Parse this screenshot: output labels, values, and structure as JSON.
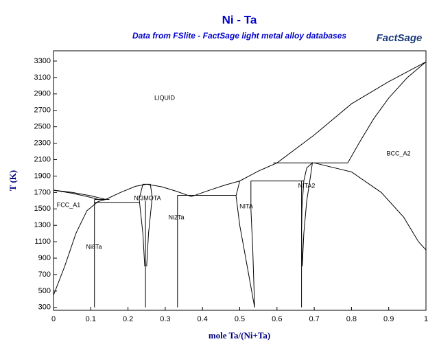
{
  "chart_data": {
    "type": "line",
    "title": "Ni - Ta",
    "subtitle": "Data from FSlite - FactSage light metal alloy databases",
    "logo": "FactSage",
    "x_label": "mole Ta/(Ni+Ta)",
    "y_label": "T (K)",
    "xlim": [
      0,
      1
    ],
    "ylim": [
      265,
      3425
    ],
    "xticks": [
      0,
      0.1,
      0.2,
      0.3,
      0.4,
      0.5,
      0.6,
      0.7,
      0.8,
      0.9,
      1
    ],
    "yticks": [
      300,
      500,
      700,
      900,
      1100,
      1300,
      1500,
      1700,
      1900,
      2100,
      2300,
      2500,
      2700,
      2900,
      3100,
      3300
    ],
    "annotations": [
      "LIQUID",
      "FCC_A1",
      "Ni8Ta",
      "NI3MOTA",
      "Ni2Ta",
      "NITA",
      "NITA2",
      "BCC_A2"
    ],
    "series": [
      {
        "color": "#000000",
        "x": [
          0,
          0.05,
          0.1,
          0.14
        ],
        "values": [
          1728,
          1700,
          1660,
          1615
        ]
      },
      {
        "color": "#000000",
        "x": [
          0.14,
          0.18,
          0.22,
          0.25,
          0.29,
          0.33,
          0.37
        ],
        "values": [
          1615,
          1700,
          1775,
          1800,
          1770,
          1715,
          1650
        ]
      },
      {
        "color": "#000000",
        "x": [
          0.37,
          0.42,
          0.46,
          0.5,
          0.55,
          0.6,
          0.7,
          0.8,
          0.9,
          1
        ],
        "values": [
          1650,
          1730,
          1790,
          1840,
          1960,
          2060,
          2400,
          2780,
          3050,
          3290
        ]
      },
      {
        "color": "#000000",
        "x": [
          0.79,
          0.82,
          0.86,
          0.9,
          0.95,
          1
        ],
        "values": [
          2060,
          2300,
          2600,
          2850,
          3100,
          3290
        ]
      },
      {
        "color": "#000000",
        "x": [
          0.59,
          0.79
        ],
        "values": [
          2060,
          2060
        ]
      },
      {
        "color": "#000000",
        "x": [
          0.668,
          0.666,
          0.667,
          0.672,
          0.68,
          0.695,
          0.69,
          0.68,
          0.672,
          0.668
        ],
        "values": [
          800,
          1200,
          1500,
          1840,
          2000,
          2060,
          1900,
          1600,
          1200,
          800
        ]
      },
      {
        "color": "#000000",
        "x": [
          0.666,
          0.666
        ],
        "values": [
          300,
          1840
        ]
      },
      {
        "color": "#000000",
        "x": [
          0.53,
          0.672
        ],
        "values": [
          1840,
          1840
        ]
      },
      {
        "color": "#000000",
        "x": [
          0.5,
          0.49,
          0.5,
          0.52,
          0.54
        ],
        "values": [
          1840,
          1660,
          1300,
          800,
          300
        ]
      },
      {
        "color": "#000000",
        "x": [
          0.53,
          0.53,
          0.535,
          0.54
        ],
        "values": [
          1840,
          1500,
          1000,
          300
        ]
      },
      {
        "color": "#000000",
        "x": [
          0.333,
          0.49
        ],
        "values": [
          1665,
          1665
        ]
      },
      {
        "color": "#000000",
        "x": [
          0.333,
          0.333
        ],
        "values": [
          300,
          1665
        ]
      },
      {
        "color": "#000000",
        "x": [
          0.245,
          0.24,
          0.23,
          0.24,
          0.25
        ],
        "values": [
          800,
          1200,
          1620,
          1800,
          1800
        ]
      },
      {
        "color": "#000000",
        "x": [
          0.25,
          0.26,
          0.265,
          0.255,
          0.25
        ],
        "values": [
          1800,
          1800,
          1640,
          1200,
          800
        ]
      },
      {
        "color": "#000000",
        "x": [
          0.247,
          0.247
        ],
        "values": [
          300,
          1600
        ]
      },
      {
        "color": "#000000",
        "x": [
          0.11,
          0.23
        ],
        "values": [
          1580,
          1580
        ]
      },
      {
        "color": "#000000",
        "x": [
          0.11,
          0.15
        ],
        "values": [
          1615,
          1615
        ]
      },
      {
        "color": "#000000",
        "x": [
          0.11,
          0.11
        ],
        "values": [
          300,
          1615
        ]
      },
      {
        "color": "#000000",
        "x": [
          0,
          0.03,
          0.06,
          0.09,
          0.12,
          0.14
        ],
        "values": [
          450,
          800,
          1200,
          1480,
          1590,
          1615
        ]
      },
      {
        "color": "#000000",
        "x": [
          0,
          0.05,
          0.1,
          0.12
        ],
        "values": [
          1728,
          1690,
          1640,
          1615
        ]
      },
      {
        "color": "#000000",
        "x": [
          0.7,
          0.8,
          0.88,
          0.94,
          0.98,
          1
        ],
        "values": [
          2060,
          1950,
          1700,
          1400,
          1100,
          1000
        ]
      }
    ]
  }
}
